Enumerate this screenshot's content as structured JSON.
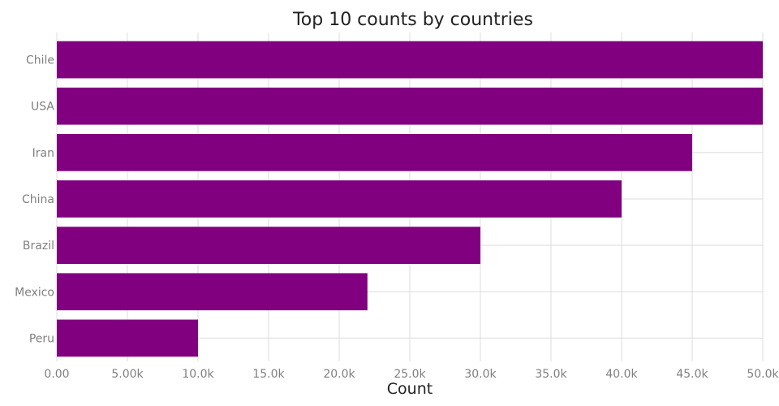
{
  "chart_data": {
    "type": "bar",
    "orientation": "horizontal",
    "title": "Top 10 counts by countries",
    "xlabel": "Count",
    "ylabel": "",
    "categories": [
      "Chile",
      "USA",
      "Iran",
      "China",
      "Brazil",
      "Mexico",
      "Peru"
    ],
    "values": [
      50000,
      50000,
      45000,
      40000,
      30000,
      22000,
      10000
    ],
    "xlim": [
      0,
      50000
    ],
    "x_ticks": [
      0,
      5000,
      10000,
      15000,
      20000,
      25000,
      30000,
      35000,
      40000,
      45000,
      50000
    ],
    "x_tick_labels": [
      "0.00",
      "5.00k",
      "10.0k",
      "15.0k",
      "20.0k",
      "25.0k",
      "30.0k",
      "35.0k",
      "40.0k",
      "45.0k",
      "50.0k"
    ],
    "grid": true,
    "legend": "none",
    "bar_color": "#800080"
  }
}
